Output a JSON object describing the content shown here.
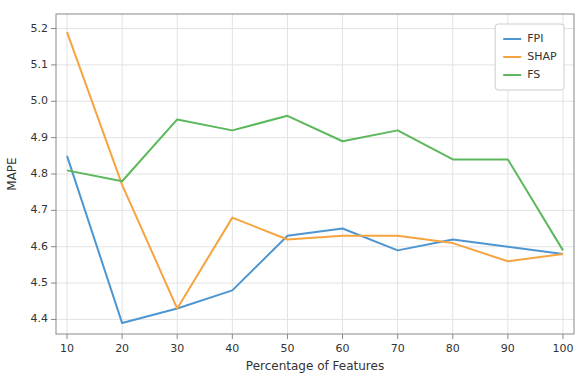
{
  "chart_data": {
    "type": "line",
    "x": [
      10,
      20,
      30,
      40,
      50,
      60,
      70,
      80,
      90,
      100
    ],
    "series": [
      {
        "name": "FPI",
        "color": "#4e96d1",
        "values": [
          4.85,
          4.39,
          4.43,
          4.48,
          4.63,
          4.65,
          4.59,
          4.62,
          4.6,
          4.58
        ]
      },
      {
        "name": "SHAP",
        "color": "#f5a43f",
        "values": [
          5.19,
          4.77,
          4.43,
          4.68,
          4.62,
          4.63,
          4.63,
          4.61,
          4.56,
          4.58
        ]
      },
      {
        "name": "FS",
        "color": "#5cb85c",
        "values": [
          4.81,
          4.78,
          4.95,
          4.92,
          4.96,
          4.89,
          4.92,
          4.84,
          4.84,
          4.59
        ]
      }
    ],
    "xlabel": "Percentage of Features",
    "ylabel": "MAPE",
    "xlim": [
      8,
      102
    ],
    "ylim": [
      4.36,
      5.24
    ],
    "xticks": [
      10,
      20,
      30,
      40,
      50,
      60,
      70,
      80,
      90,
      100
    ],
    "yticks": [
      4.4,
      4.5,
      4.6,
      4.7,
      4.8,
      4.9,
      {
        "value": 5.0,
        "label": "5.0"
      },
      5.1,
      5.2
    ],
    "grid": true,
    "legend": "upper right"
  }
}
